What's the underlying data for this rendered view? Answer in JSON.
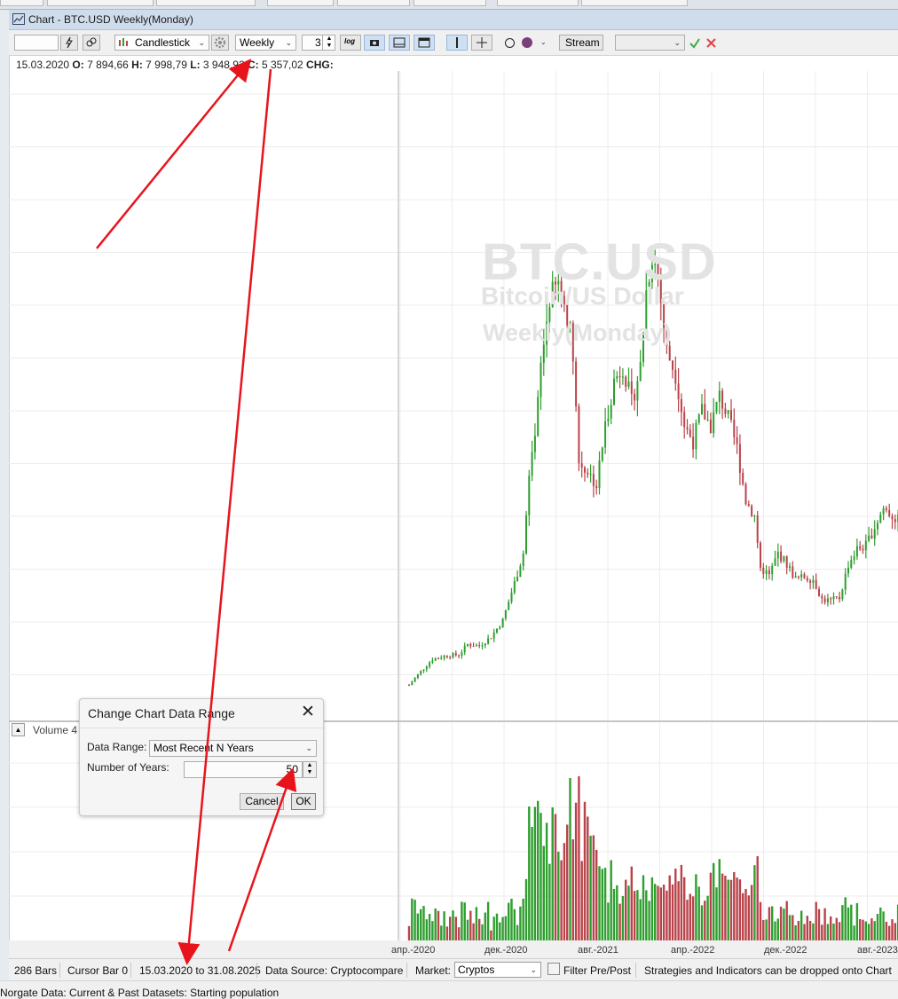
{
  "window": {
    "title": "Chart - BTC.USD Weekly(Monday)"
  },
  "toolbar": {
    "chart_style": "Candlestick",
    "periodicity": "Weekly",
    "period_count": "3",
    "log_label": "log",
    "stream_label": "Stream"
  },
  "ohlc": {
    "date": "15.03.2020",
    "open_label": "O:",
    "open": "7 894,66",
    "high_label": "H:",
    "high": "7 998,79",
    "low_label": "L:",
    "low": "3 948,92",
    "close_label": "C:",
    "close": "5 357,02",
    "chg_label": "CHG:"
  },
  "watermark": {
    "symbol": "BTC.USD",
    "name": "Bitcoin/US Dollar",
    "periodicity": "Weekly(Monday)"
  },
  "volume_pane": {
    "label": "Volume 4"
  },
  "chart_data": {
    "type": "candlestick",
    "x_tick_labels": [
      "апр.-2020",
      "дек.-2020",
      "авг.-2021",
      "апр.-2022",
      "дек.-2022",
      "авг.-2023"
    ],
    "price_anchors": [
      {
        "t": 0,
        "v": 5357
      },
      {
        "t": 4,
        "v": 7200
      },
      {
        "t": 8,
        "v": 8800
      },
      {
        "t": 13,
        "v": 9300
      },
      {
        "t": 17,
        "v": 9400
      },
      {
        "t": 20,
        "v": 10800
      },
      {
        "t": 24,
        "v": 10600
      },
      {
        "t": 28,
        "v": 11800
      },
      {
        "t": 32,
        "v": 14000
      },
      {
        "t": 36,
        "v": 19000
      },
      {
        "t": 39,
        "v": 23000
      },
      {
        "t": 41,
        "v": 33000
      },
      {
        "t": 43,
        "v": 38000
      },
      {
        "t": 45,
        "v": 48000
      },
      {
        "t": 48,
        "v": 57000
      },
      {
        "t": 51,
        "v": 59000
      },
      {
        "t": 54,
        "v": 55000
      },
      {
        "t": 56,
        "v": 50000
      },
      {
        "t": 58,
        "v": 35000
      },
      {
        "t": 61,
        "v": 34000
      },
      {
        "t": 64,
        "v": 32000
      },
      {
        "t": 67,
        "v": 40000
      },
      {
        "t": 70,
        "v": 46000
      },
      {
        "t": 73,
        "v": 48000
      },
      {
        "t": 76,
        "v": 43000
      },
      {
        "t": 79,
        "v": 48000
      },
      {
        "t": 81,
        "v": 58000
      },
      {
        "t": 83,
        "v": 63000
      },
      {
        "t": 85,
        "v": 60000
      },
      {
        "t": 88,
        "v": 50000
      },
      {
        "t": 91,
        "v": 47000
      },
      {
        "t": 94,
        "v": 40000
      },
      {
        "t": 97,
        "v": 38000
      },
      {
        "t": 100,
        "v": 42000
      },
      {
        "t": 103,
        "v": 40000
      },
      {
        "t": 106,
        "v": 44000
      },
      {
        "t": 109,
        "v": 41000
      },
      {
        "t": 112,
        "v": 37000
      },
      {
        "t": 115,
        "v": 30000
      },
      {
        "t": 118,
        "v": 28000
      },
      {
        "t": 120,
        "v": 21000
      },
      {
        "t": 123,
        "v": 20000
      },
      {
        "t": 126,
        "v": 23000
      },
      {
        "t": 129,
        "v": 21500
      },
      {
        "t": 132,
        "v": 19500
      },
      {
        "t": 135,
        "v": 19800
      },
      {
        "t": 138,
        "v": 19500
      },
      {
        "t": 141,
        "v": 16800
      },
      {
        "t": 144,
        "v": 16600
      },
      {
        "t": 147,
        "v": 17000
      },
      {
        "t": 150,
        "v": 21500
      },
      {
        "t": 153,
        "v": 23500
      },
      {
        "t": 156,
        "v": 24000
      },
      {
        "t": 159,
        "v": 26500
      },
      {
        "t": 162,
        "v": 29000
      },
      {
        "t": 165,
        "v": 28000
      },
      {
        "t": 168,
        "v": 27000
      },
      {
        "t": 171,
        "v": 30000
      },
      {
        "t": 174,
        "v": 29500
      },
      {
        "t": 177,
        "v": 26000
      },
      {
        "t": 180,
        "v": 26500
      }
    ],
    "ylim": [
      3000,
      72000
    ]
  },
  "dialog": {
    "title": "Change Chart Data Range",
    "data_range_label": "Data Range:",
    "data_range_value": "Most Recent N Years",
    "years_label": "Number of Years:",
    "years_value": "50",
    "cancel_label": "Cancel",
    "ok_label": "OK"
  },
  "status": {
    "bars": "286 Bars",
    "cursor": "Cursor Bar 0",
    "range": "15.03.2020 to 31.08.2025",
    "source": "Data Source: Cryptocompare",
    "market_label": "Market:",
    "market_value": "Cryptos",
    "filter_label": "Filter Pre/Post",
    "hint": "Strategies and Indicators can be dropped onto Chart"
  },
  "bottom": {
    "text": "Norgate Data: Current & Past Datasets: Starting population"
  },
  "colors": {
    "up": "#2e9e2e",
    "down": "#b8434a",
    "grid": "#ececec",
    "annotation": "#e8141c"
  }
}
